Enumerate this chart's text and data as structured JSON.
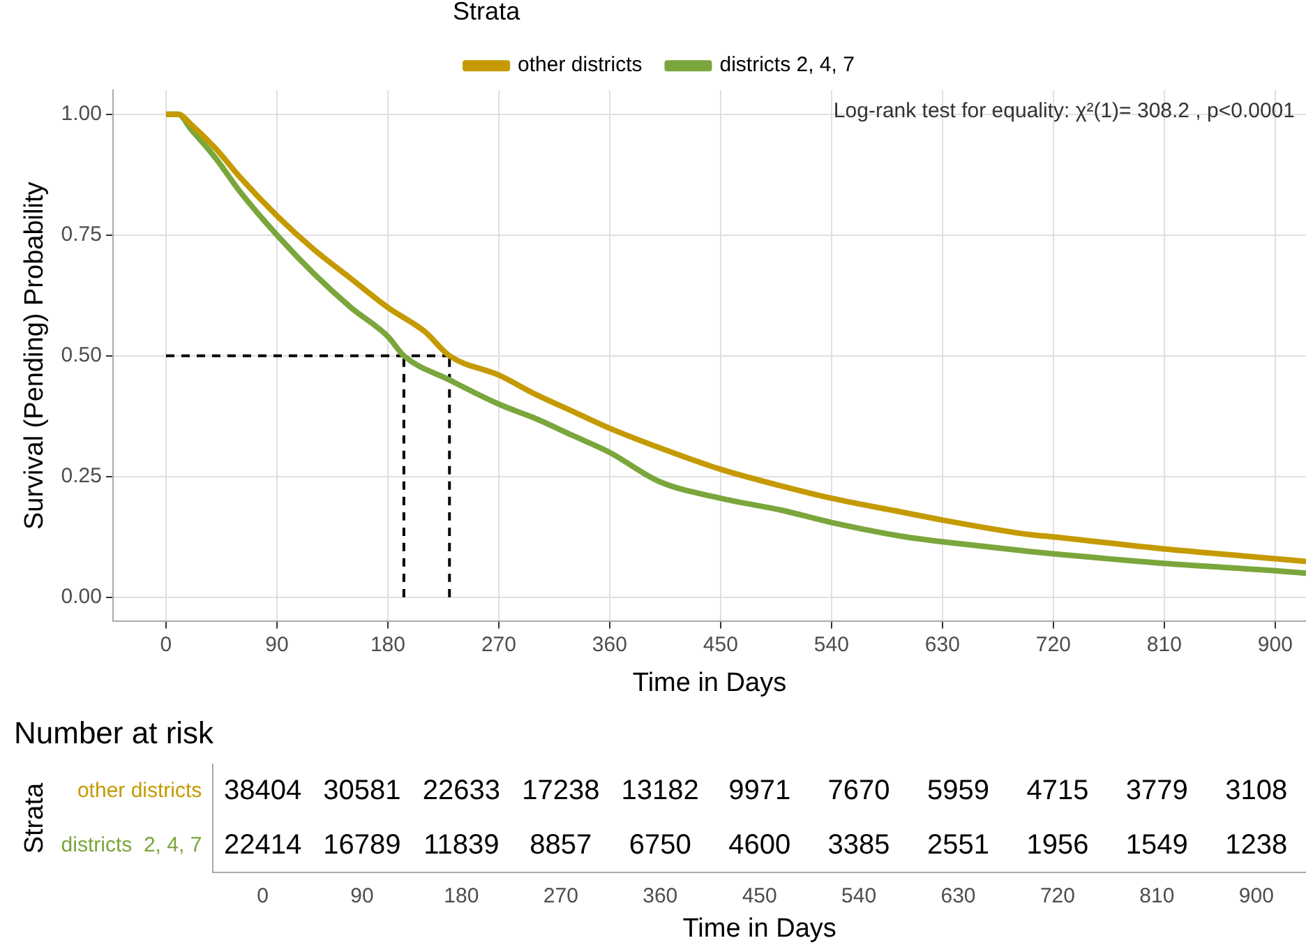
{
  "chart_data": [
    {
      "type": "line",
      "xlabel": "Time in Days",
      "ylabel": "Survival (Pending) Probability",
      "legend_title": "Strata",
      "legend": "top",
      "grid": true,
      "line_style": "solid",
      "annotations": [
        "Log-rank test for equality: χ²(1)= 308.2 , p<0.0001"
      ],
      "xlim": [
        -43,
        925
      ],
      "ylim": [
        -0.05,
        1.05
      ],
      "xticks": [
        0,
        90,
        180,
        270,
        360,
        450,
        540,
        630,
        720,
        810,
        900
      ],
      "yticks": [
        {
          "value": 0,
          "label": "0.00"
        },
        {
          "value": 0.25,
          "label": "0.25"
        },
        {
          "value": 0.5,
          "label": "0.50"
        },
        {
          "value": 0.75,
          "label": "0.75"
        },
        {
          "value": 1,
          "label": "1.00"
        }
      ],
      "series": [
        {
          "name": "other districts",
          "color": "#c49a00",
          "x": [
            0,
            10,
            20,
            40,
            60,
            90,
            120,
            150,
            180,
            210,
            230,
            270,
            300,
            330,
            360,
            400,
            450,
            500,
            540,
            600,
            630,
            700,
            720,
            810,
            900,
            925
          ],
          "values": [
            1,
            1,
            0.98,
            0.93,
            0.87,
            0.79,
            0.72,
            0.66,
            0.6,
            0.55,
            0.5,
            0.46,
            0.42,
            0.385,
            0.35,
            0.31,
            0.265,
            0.23,
            0.205,
            0.175,
            0.16,
            0.13,
            0.125,
            0.1,
            0.08,
            0.074
          ]
        },
        {
          "name": "districts 2, 4, 7",
          "color": "#7aa63c",
          "x": [
            0,
            10,
            20,
            40,
            60,
            90,
            120,
            150,
            180,
            193,
            230,
            270,
            300,
            330,
            360,
            400,
            450,
            500,
            540,
            600,
            630,
            700,
            720,
            810,
            900,
            925
          ],
          "values": [
            1,
            1,
            0.97,
            0.91,
            0.84,
            0.75,
            0.67,
            0.6,
            0.54,
            0.5,
            0.45,
            0.4,
            0.37,
            0.335,
            0.3,
            0.24,
            0.205,
            0.18,
            0.155,
            0.125,
            0.115,
            0.095,
            0.09,
            0.07,
            0.055,
            0.05
          ]
        },
        {
          "type": "line",
          "color": "#000000",
          "line_style": "dashed",
          "x": [
            0,
            230
          ],
          "values": [
            0.5,
            0.5
          ]
        },
        {
          "type": "line",
          "color": "#000000",
          "line_style": "dashed",
          "x": [
            193,
            193
          ],
          "values": [
            0,
            0.5
          ]
        },
        {
          "type": "line",
          "color": "#000000",
          "line_style": "dashed",
          "x": [
            230,
            230
          ],
          "values": [
            0,
            0.5
          ]
        }
      ]
    },
    {
      "type": "heatmap",
      "title": "Number at risk",
      "xlabel": "Time in Days",
      "ylabel": "Strata",
      "legend": false,
      "data_labels": true,
      "categories": [
        "0",
        "90",
        "180",
        "270",
        "360",
        "450",
        "540",
        "630",
        "720",
        "810",
        "900"
      ],
      "y_categories": [
        "other districts",
        "districts  2, 4, 7"
      ],
      "cells": [
        [
          38404,
          30581,
          22633,
          17238,
          13182,
          9971,
          7670,
          5959,
          4715,
          3779,
          3108
        ],
        [
          22414,
          16789,
          11839,
          8857,
          6750,
          4600,
          3385,
          2551,
          1956,
          1549,
          1238
        ]
      ]
    }
  ]
}
